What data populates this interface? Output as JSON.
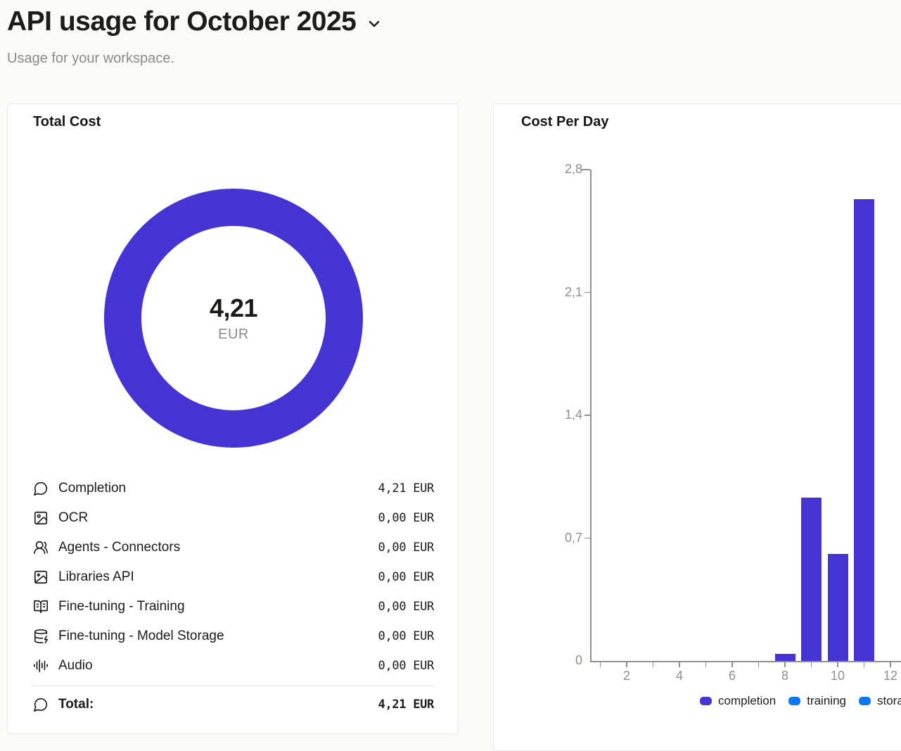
{
  "header": {
    "title": "API usage for October 2025",
    "subtitle": "Usage for your workspace."
  },
  "colors": {
    "accent_indigo": "#4533d3",
    "accent_blue": "#0d78f2",
    "page_bg": "#fafaf8",
    "card_bg": "#ffffff",
    "card_border": "#e9e9e7",
    "text_primary": "#1b1b1a",
    "text_muted": "#8b8b86",
    "axis_gray": "#90908b"
  },
  "total_cost_card": {
    "title": "Total Cost",
    "donut_center": {
      "value": "4,21",
      "unit": "EUR"
    },
    "rows": [
      {
        "icon": "message-circle-icon",
        "label": "Completion",
        "value": "4,21 EUR"
      },
      {
        "icon": "image-scan-icon",
        "label": "OCR",
        "value": "0,00 EUR"
      },
      {
        "icon": "users-icon",
        "label": "Agents - Connectors",
        "value": "0,00 EUR"
      },
      {
        "icon": "image-card-icon",
        "label": "Libraries API",
        "value": "0,00 EUR"
      },
      {
        "icon": "book-open-icon",
        "label": "Fine-tuning - Training",
        "value": "0,00 EUR"
      },
      {
        "icon": "database-zap-icon",
        "label": "Fine-tuning - Model Storage",
        "value": "0,00 EUR"
      },
      {
        "icon": "audio-lines-icon",
        "label": "Audio",
        "value": "0,00 EUR"
      }
    ],
    "total_row": {
      "icon": "message-circle-icon",
      "label": "Total:",
      "value": "4,21 EUR"
    }
  },
  "cost_per_day_card": {
    "title": "Cost Per Day",
    "legend": [
      {
        "label": "completion",
        "color": "#4533d3"
      },
      {
        "label": "training",
        "color": "#0d78f2"
      },
      {
        "label": "storage",
        "color": "#0d78f2"
      }
    ]
  },
  "chart_data": [
    {
      "type": "pie",
      "subtype": "donut",
      "title": "Total Cost",
      "unit": "EUR",
      "slices": [
        {
          "name": "Completion",
          "value": 4.21,
          "color": "#4533d3"
        }
      ],
      "center_label": "4,21 EUR",
      "legend_position": "none"
    },
    {
      "type": "bar",
      "title": "Cost Per Day",
      "unit": "EUR",
      "x_days": [
        1,
        2,
        3,
        4,
        5,
        6,
        7,
        8,
        9,
        10,
        11,
        12
      ],
      "xtick_labeled_days": [
        2,
        4,
        6,
        8,
        10,
        12
      ],
      "ylim": [
        0,
        2.8
      ],
      "ytick_values": [
        0,
        0.7,
        1.4,
        2.1,
        2.8
      ],
      "ytick_labels": [
        "0",
        "0,7",
        "1,4",
        "2,1",
        "2,8"
      ],
      "grid": false,
      "legend_position": "bottom",
      "series": [
        {
          "name": "completion",
          "color": "#4533d3",
          "values": [
            0,
            0,
            0,
            0,
            0,
            0,
            0,
            0.04,
            0.93,
            0.61,
            2.63,
            0
          ]
        },
        {
          "name": "training",
          "color": "#0d78f2",
          "values": [
            0,
            0,
            0,
            0,
            0,
            0,
            0,
            0,
            0,
            0,
            0,
            0
          ]
        },
        {
          "name": "storage",
          "color": "#0d78f2",
          "values": [
            0,
            0,
            0,
            0,
            0,
            0,
            0,
            0,
            0,
            0,
            0,
            0
          ]
        }
      ]
    }
  ]
}
